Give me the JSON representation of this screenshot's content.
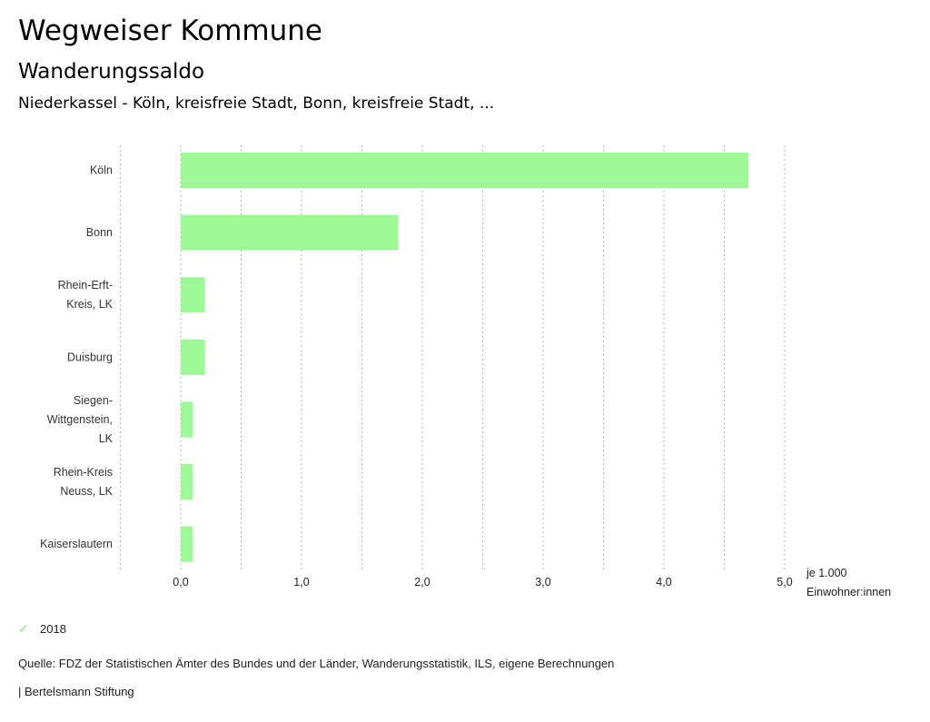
{
  "header": {
    "title": "Wegweiser Kommune",
    "subtitle": "Wanderungssaldo",
    "region": "Niederkassel - Köln, kreisfreie Stadt, Bonn, kreisfreie Stadt, ..."
  },
  "chart_data": {
    "type": "bar",
    "orientation": "horizontal",
    "title": "Wanderungssaldo",
    "categories": [
      [
        "Köln"
      ],
      [
        "Bonn"
      ],
      [
        "Rhein-Erft-",
        "Kreis, LK"
      ],
      [
        "Duisburg"
      ],
      [
        "Siegen-",
        "Wittgenstein,",
        "LK"
      ],
      [
        "Rhein-Kreis",
        "Neuss, LK"
      ],
      [
        "Kaiserslautern"
      ]
    ],
    "series": [
      {
        "name": "2018",
        "color": "#9cf996",
        "values": [
          4.7,
          1.8,
          0.2,
          0.2,
          0.1,
          0.1,
          0.1
        ]
      }
    ],
    "xlim": [
      -0.5,
      5.0
    ],
    "x_ticks": [
      0,
      1,
      2,
      3,
      4,
      5
    ],
    "x_tick_labels": [
      "0,0",
      "1,0",
      "2,0",
      "3,0",
      "4,0",
      "5,0"
    ],
    "gridlines": [
      -0.5,
      0,
      0.5,
      1,
      1.5,
      2,
      2.5,
      3,
      3.5,
      4,
      4.5,
      5
    ],
    "grid": true,
    "xlabel": [
      "je 1.000",
      "Einwohner:innen"
    ],
    "legend_position": "bottom-left"
  },
  "legend": {
    "items": [
      {
        "label": "2018",
        "icon": "check-icon",
        "color": "#8ee88a"
      }
    ]
  },
  "footer": {
    "source": "Quelle: FDZ der Statistischen Ämter des Bundes und der Länder, Wanderungsstatistik, ILS, eigene Berechnungen",
    "brand": "| Bertelsmann Stiftung"
  }
}
